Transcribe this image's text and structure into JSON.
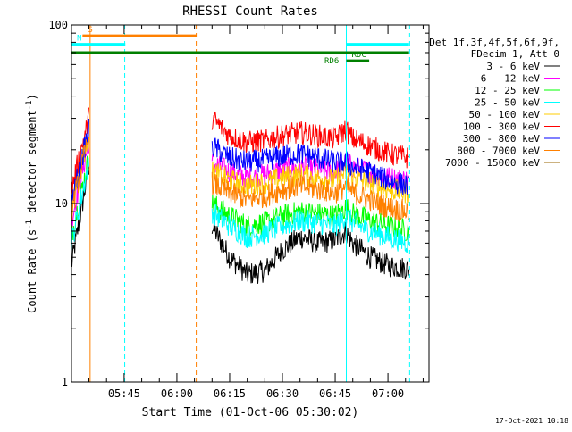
{
  "footer_date": "17-Oct-2021 10:18",
  "chart_data": {
    "type": "line",
    "title": "RHESSI Count Rates",
    "xlabel": "Start Time (01-Oct-06 05:30:02)",
    "ylabel": "Count Rate (s^-1 detector segment^-1)",
    "ylabel_main": "Count Rate (s",
    "ylabel_exp1": "-1",
    "ylabel_mid": " detector segment",
    "ylabel_exp2": "-1",
    "ylabel_end": ")",
    "yscale": "log",
    "ylim": [
      1,
      100
    ],
    "xlim": [
      "05:30:02",
      "07:11:40"
    ],
    "x_ticks": [
      "05:45",
      "06:00",
      "06:15",
      "06:30",
      "06:45",
      "07:00"
    ],
    "y_ticks": [
      "1",
      "10",
      "100"
    ],
    "legend_header": [
      "Det 1f,3f,4f,5f,6f,9f,",
      "FDecim 1, Att 0"
    ],
    "legend_position": "right",
    "x_times": [
      "05:30",
      "05:35",
      "06:06",
      "06:10",
      "06:15",
      "06:20",
      "06:25",
      "06:30",
      "06:35",
      "06:40",
      "06:45",
      "06:48",
      "06:50",
      "06:55",
      "07:00",
      "07:06"
    ],
    "series": [
      {
        "name": "3 - 6 keV",
        "color": "#000000",
        "values": [
          4.5,
          16,
          null,
          7.5,
          5,
          4,
          4.2,
          5.5,
          6.5,
          6,
          6.2,
          7,
          6,
          5,
          4.5,
          4.3
        ]
      },
      {
        "name": "6 - 12 keV",
        "color": "#ff00ff",
        "values": [
          8,
          22,
          null,
          17,
          15,
          14,
          14.5,
          15.5,
          16,
          15.5,
          15,
          17,
          16,
          15,
          14,
          13.5
        ]
      },
      {
        "name": "12 - 25 keV",
        "color": "#00ff00",
        "values": [
          6.5,
          18,
          null,
          10,
          8.5,
          7.5,
          7.8,
          8.5,
          9,
          8.8,
          8.5,
          9.5,
          8.8,
          8,
          7.5,
          7
        ]
      },
      {
        "name": "25 - 50 keV",
        "color": "#00ffff",
        "values": [
          6,
          17,
          null,
          9,
          7.5,
          6.5,
          6.8,
          7.5,
          8,
          7.8,
          7.5,
          8.5,
          7.8,
          7,
          6.5,
          6
        ]
      },
      {
        "name": "50 - 100 keV",
        "color": "#ffcc00",
        "values": [
          10,
          25,
          null,
          15,
          13.5,
          12.5,
          13,
          14,
          14.5,
          14,
          13.5,
          15,
          14,
          13,
          12,
          11.5
        ]
      },
      {
        "name": "100 - 300 keV",
        "color": "#ff0000",
        "values": [
          12,
          30,
          null,
          30,
          24,
          22,
          22.5,
          24,
          25,
          24,
          23,
          26,
          23,
          21,
          19,
          18
        ]
      },
      {
        "name": "300 - 800 keV",
        "color": "#0000ff",
        "values": [
          10,
          26,
          null,
          21,
          18,
          17,
          17.5,
          18.5,
          19,
          18,
          17,
          17,
          16,
          15,
          13.5,
          12.5
        ]
      },
      {
        "name": "800 - 7000 keV",
        "color": "#ff8000",
        "values": [
          9,
          24,
          null,
          13,
          11.5,
          10.5,
          11,
          12,
          12.5,
          12,
          11.5,
          12.5,
          11.5,
          10.5,
          9.5,
          9
        ]
      },
      {
        "name": "7000 - 15000 keV",
        "color": "#996600",
        "values": [
          null,
          null,
          null,
          null,
          null,
          null,
          null,
          null,
          null,
          null,
          null,
          null,
          null,
          null,
          null,
          null
        ]
      }
    ],
    "flags": [
      {
        "label": "S",
        "color": "#ff8000",
        "start": "05:33:10",
        "end": "06:05:30",
        "level": 87
      },
      {
        "label": "N",
        "color": "#00ffff",
        "start": "05:30:02",
        "end": "05:45:20",
        "level": 78
      },
      {
        "label": "RD6",
        "color": "#008000",
        "start": "05:30:02",
        "end": "07:06:00",
        "level": 70
      },
      {
        "label": "RDC",
        "color": "#008000",
        "start": "06:48:10",
        "end": "06:54:40",
        "level": 63
      },
      {
        "label": "",
        "color": "#00ffff",
        "start": "06:48:10",
        "end": "07:06:00",
        "level": 78
      }
    ],
    "markers": [
      {
        "time": "05:35:20",
        "color": "#ff8000",
        "style": "solid"
      },
      {
        "time": "05:45:10",
        "color": "#00ffff",
        "style": "dashed"
      },
      {
        "time": "06:05:30",
        "color": "#ff8000",
        "style": "dashed"
      },
      {
        "time": "06:48:10",
        "color": "#00ffff",
        "style": "solid"
      },
      {
        "time": "07:06:10",
        "color": "#00ffff",
        "style": "dashed"
      }
    ]
  }
}
